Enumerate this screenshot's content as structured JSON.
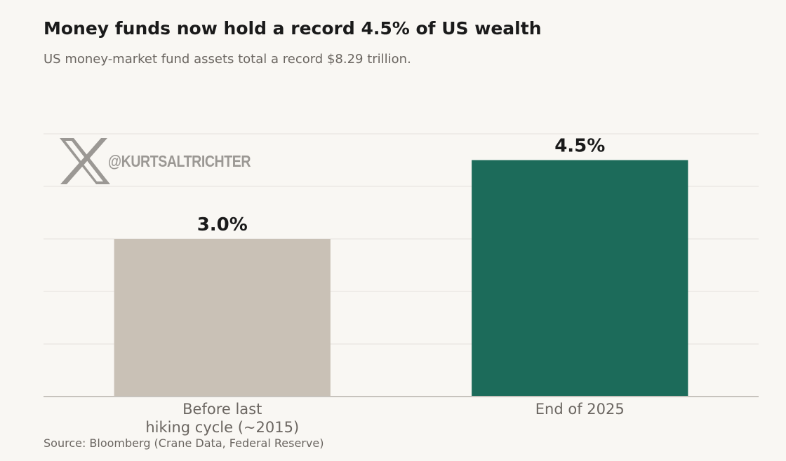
{
  "title": "Money funds now hold a record 4.5% of US wealth",
  "subtitle": "US money-market fund assets total a record $8.29 trillion.",
  "source": "Source: Bloomberg (Crane Data, Federal Reserve)",
  "watermark": {
    "icon": "x-logo-icon",
    "handle": "@KURTSALTRICHTER"
  },
  "colors": {
    "background": "#f9f7f3",
    "bar_before": "#c9c1b6",
    "bar_end": "#1c6b5a",
    "grid": "#e9e6e1",
    "axis": "#c7c3bd"
  },
  "chart_data": {
    "type": "bar",
    "categories": [
      "Before last\nhiking cycle (~2015)",
      "End of 2025"
    ],
    "values": [
      3.0,
      4.5
    ],
    "data_labels": [
      "3.0%",
      "4.5%"
    ],
    "bar_colors": [
      "#c9c1b6",
      "#1c6b5a"
    ],
    "title": "Money funds now hold a record 4.5% of US wealth",
    "xlabel": "",
    "ylabel": "",
    "ylim": [
      0,
      5
    ],
    "grid": true,
    "legend": "none"
  }
}
